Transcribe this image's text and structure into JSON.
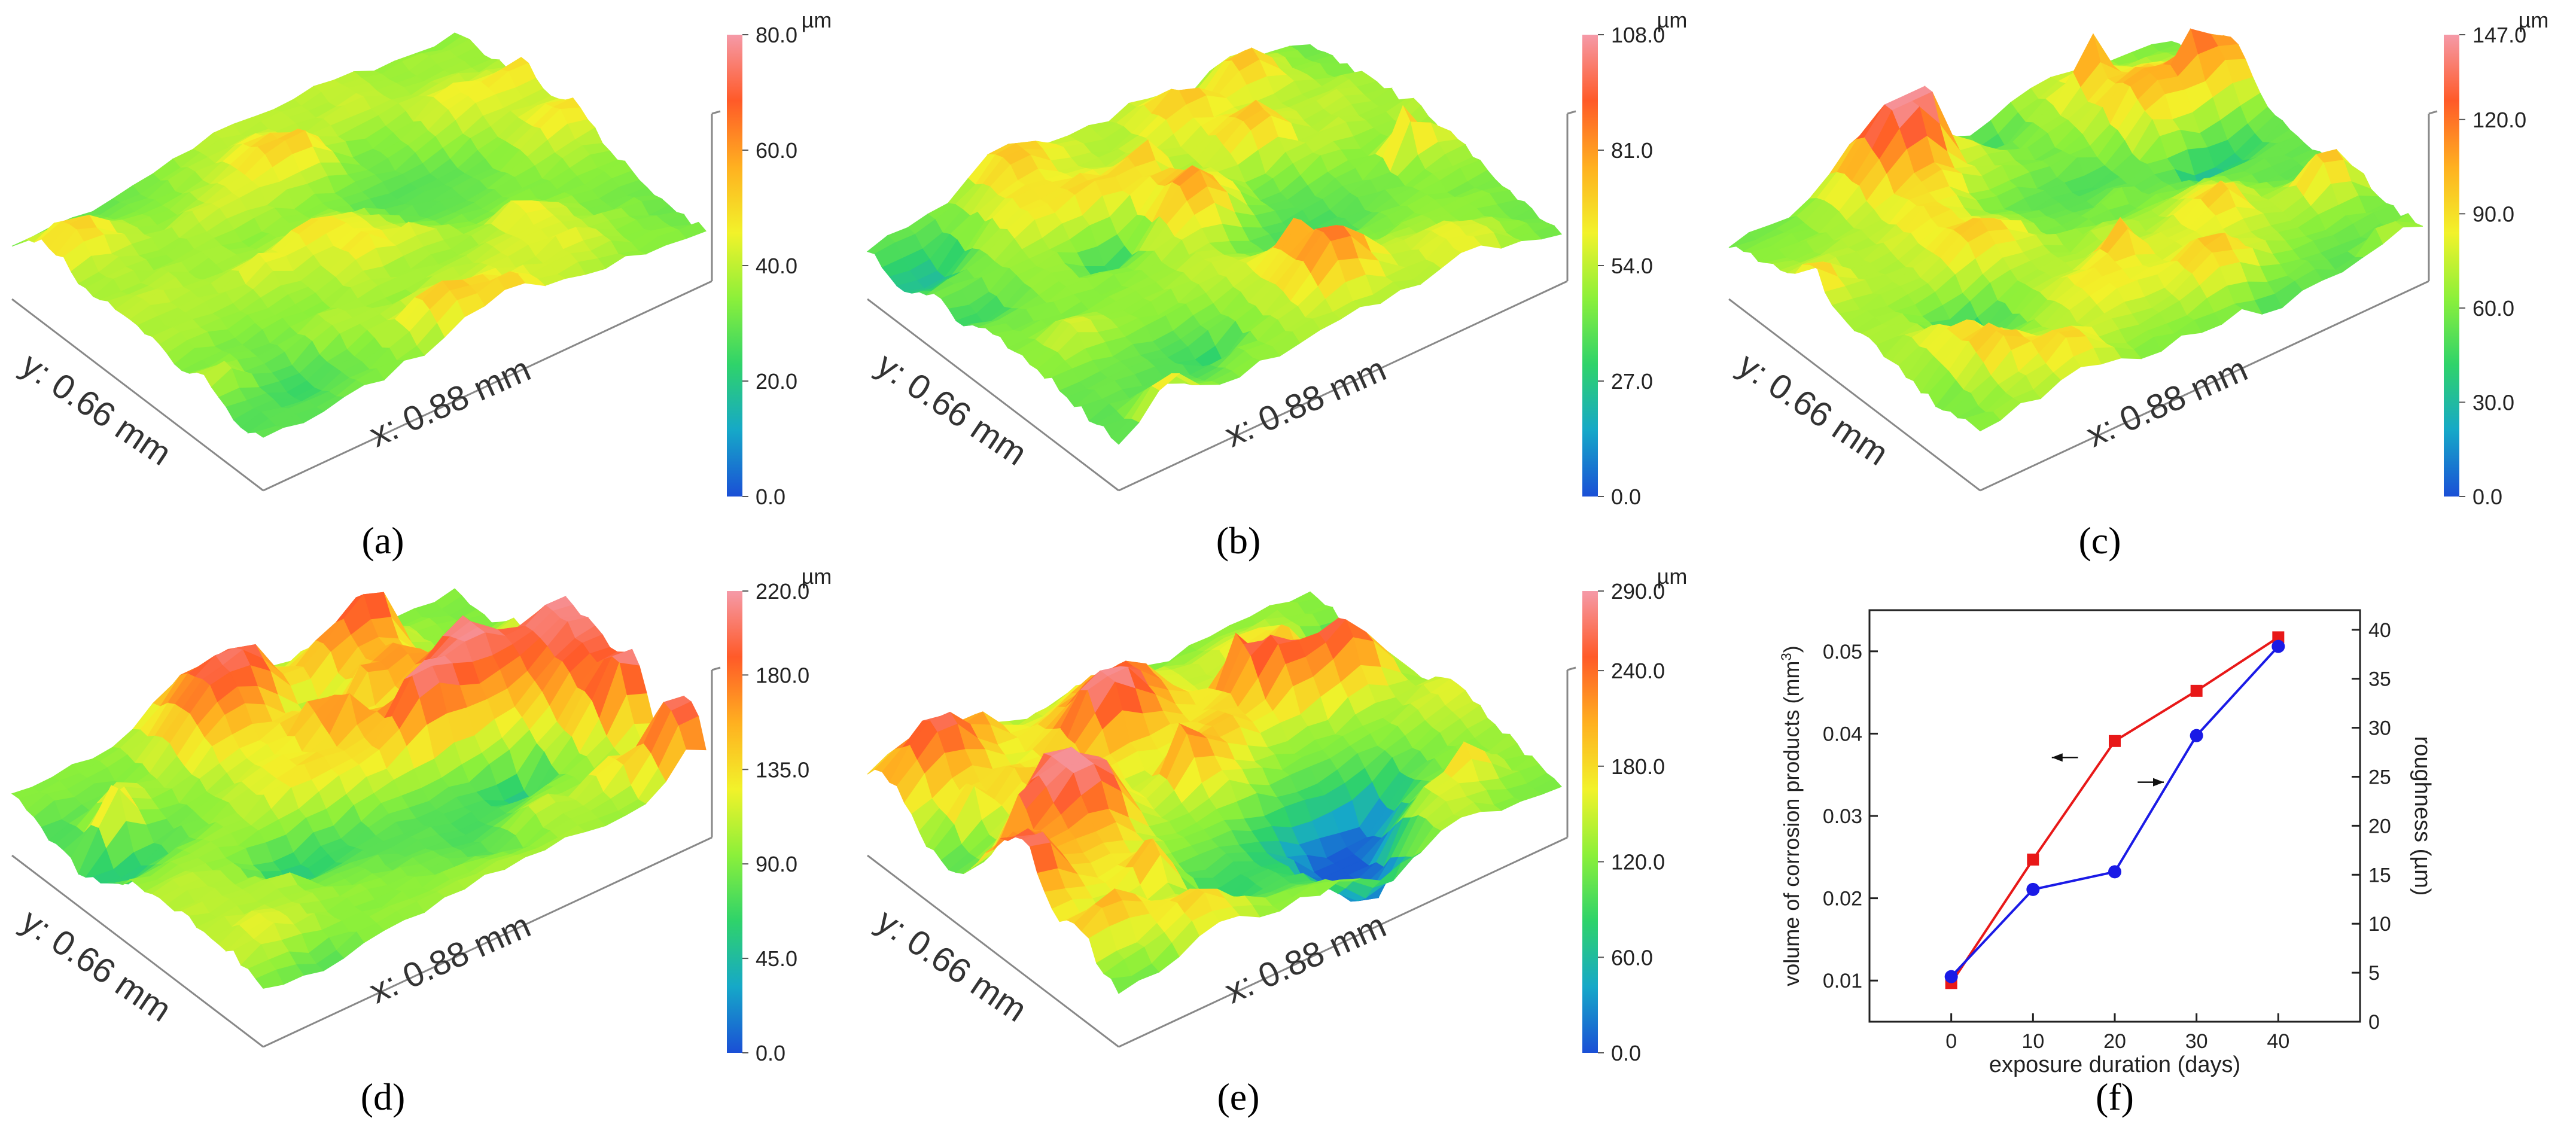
{
  "figure": {
    "unit_label": "µm",
    "x_axis_label": "x: 0.88 mm",
    "y_axis_label": "y: 0.66 mm"
  },
  "colors": {
    "surface_stops": [
      "#1a4fd6",
      "#16a8c8",
      "#2fd36a",
      "#8cf03a",
      "#f2f22a",
      "#ffb020",
      "#ff5a28",
      "#f59aa8"
    ],
    "series_volume": "#e81818",
    "series_roughness": "#1a1ae6",
    "axis": "#222222"
  },
  "panels": [
    {
      "caption": "(a)",
      "label": "a",
      "colorbar_ticks": [
        "80.0",
        "60.0",
        "40.0",
        "20.0",
        "0.0"
      ],
      "max": 80,
      "amplitude": 0.45,
      "seed": 11
    },
    {
      "caption": "(b)",
      "label": "b",
      "colorbar_ticks": [
        "108.0",
        "81.0",
        "54.0",
        "27.0",
        "0.0"
      ],
      "max": 108,
      "amplitude": 0.75,
      "seed": 23
    },
    {
      "caption": "(c)",
      "label": "c",
      "colorbar_ticks": [
        "147.0",
        "120.0",
        "90.0",
        "60.0",
        "30.0",
        "0.0"
      ],
      "max": 147,
      "amplitude": 0.85,
      "seed": 37
    },
    {
      "caption": "(d)",
      "label": "d",
      "colorbar_ticks": [
        "220.0",
        "180.0",
        "135.0",
        "90.0",
        "45.0",
        "0.0"
      ],
      "max": 220,
      "amplitude": 0.95,
      "seed": 41
    },
    {
      "caption": "(e)",
      "label": "e",
      "colorbar_ticks": [
        "290.0",
        "240.0",
        "180.0",
        "120.0",
        "60.0",
        "0.0"
      ],
      "max": 290,
      "amplitude": 1.0,
      "seed": 53
    }
  ],
  "chart_data": {
    "type": "line",
    "caption": "(f)",
    "xlabel": "exposure duration (days)",
    "ylabel_left": "volume of corrosion products (mm",
    "ylabel_left_sup": "3",
    "ylabel_left_end": ")",
    "ylabel_right": "roughness (µm)",
    "x": [
      0,
      10,
      20,
      30,
      40
    ],
    "xlim": [
      -10,
      50
    ],
    "xticks": [
      "0",
      "10",
      "20",
      "30",
      "40"
    ],
    "ylim_left": [
      0.005,
      0.055
    ],
    "yticks_left": [
      "0.01",
      "0.02",
      "0.03",
      "0.04",
      "0.05"
    ],
    "ylim_right": [
      0,
      42
    ],
    "yticks_right": [
      "0",
      "5",
      "10",
      "15",
      "20",
      "25",
      "30",
      "35",
      "40"
    ],
    "series": [
      {
        "name": "volume of corrosion products",
        "axis": "left",
        "marker": "square",
        "values": [
          0.0097,
          0.0247,
          0.0391,
          0.0452,
          0.0517
        ]
      },
      {
        "name": "roughness",
        "axis": "right",
        "marker": "circle",
        "values": [
          4.6,
          13.5,
          15.3,
          29.2,
          38.3
        ]
      }
    ],
    "annotations": [
      {
        "direction": "left",
        "points_to": "volume of corrosion products"
      },
      {
        "direction": "right",
        "points_to": "roughness"
      }
    ]
  }
}
